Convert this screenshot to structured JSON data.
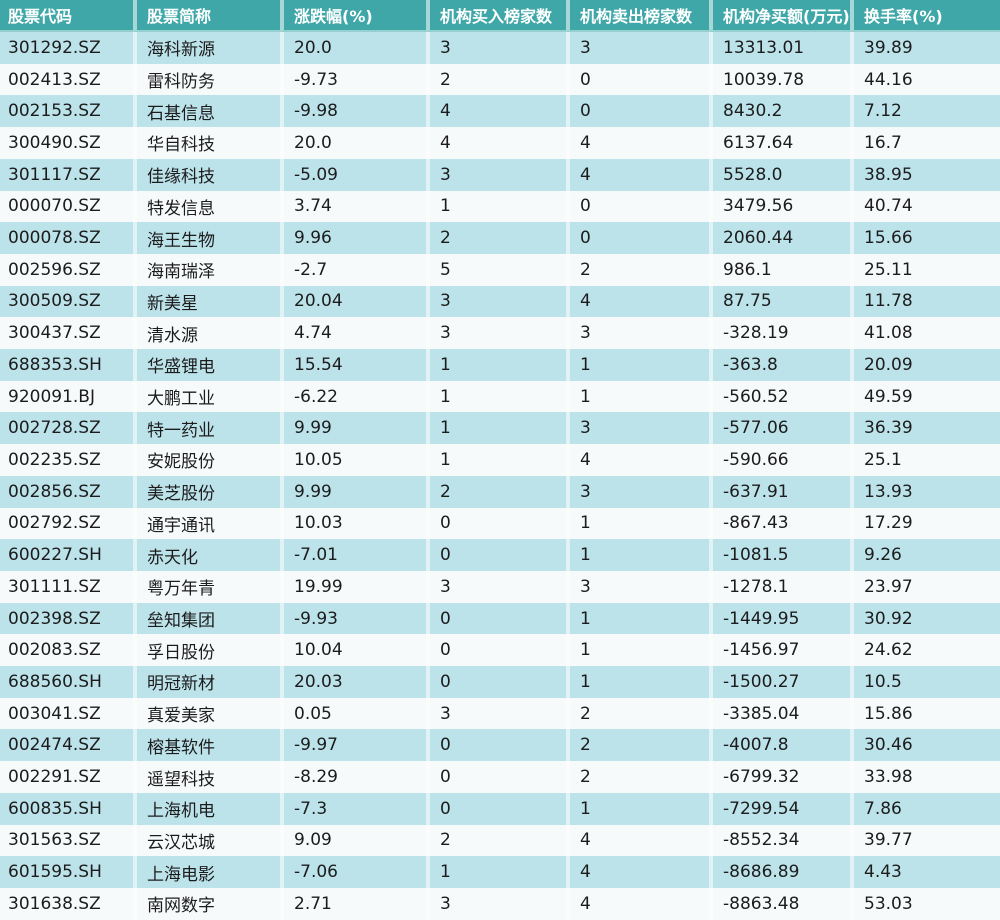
{
  "colors": {
    "header_bg": "#3fa7a8",
    "header_text": "#ffffff",
    "row_alt_bg": "#bce2ea",
    "row_bg": "#f7fafb",
    "cell_text": "#1c1c1c",
    "separator": "rgba(255,255,255,0.55)"
  },
  "table": {
    "columns": [
      {
        "key": "code",
        "label": "股票代码"
      },
      {
        "key": "name",
        "label": "股票简称"
      },
      {
        "key": "change",
        "label": "涨跌幅(%)"
      },
      {
        "key": "buy",
        "label": "机构买入榜家数"
      },
      {
        "key": "sell",
        "label": "机构卖出榜家数"
      },
      {
        "key": "net",
        "label": "机构净买额(万元)"
      },
      {
        "key": "turnover",
        "label": "换手率(%)"
      }
    ],
    "rows": [
      [
        "301292.SZ",
        "海科新源",
        "20.0",
        "3",
        "3",
        "13313.01",
        "39.89"
      ],
      [
        "002413.SZ",
        "雷科防务",
        "-9.73",
        "2",
        "0",
        "10039.78",
        "44.16"
      ],
      [
        "002153.SZ",
        "石基信息",
        "-9.98",
        "4",
        "0",
        "8430.2",
        "7.12"
      ],
      [
        "300490.SZ",
        "华自科技",
        "20.0",
        "4",
        "4",
        "6137.64",
        "16.7"
      ],
      [
        "301117.SZ",
        "佳缘科技",
        "-5.09",
        "3",
        "4",
        "5528.0",
        "38.95"
      ],
      [
        "000070.SZ",
        "特发信息",
        "3.74",
        "1",
        "0",
        "3479.56",
        "40.74"
      ],
      [
        "000078.SZ",
        "海王生物",
        "9.96",
        "2",
        "0",
        "2060.44",
        "15.66"
      ],
      [
        "002596.SZ",
        "海南瑞泽",
        "-2.7",
        "5",
        "2",
        "986.1",
        "25.11"
      ],
      [
        "300509.SZ",
        "新美星",
        "20.04",
        "3",
        "4",
        "87.75",
        "11.78"
      ],
      [
        "300437.SZ",
        "清水源",
        "4.74",
        "3",
        "3",
        "-328.19",
        "41.08"
      ],
      [
        "688353.SH",
        "华盛锂电",
        "15.54",
        "1",
        "1",
        "-363.8",
        "20.09"
      ],
      [
        "920091.BJ",
        "大鹏工业",
        "-6.22",
        "1",
        "1",
        "-560.52",
        "49.59"
      ],
      [
        "002728.SZ",
        "特一药业",
        "9.99",
        "1",
        "3",
        "-577.06",
        "36.39"
      ],
      [
        "002235.SZ",
        "安妮股份",
        "10.05",
        "1",
        "4",
        "-590.66",
        "25.1"
      ],
      [
        "002856.SZ",
        "美芝股份",
        "9.99",
        "2",
        "3",
        "-637.91",
        "13.93"
      ],
      [
        "002792.SZ",
        "通宇通讯",
        "10.03",
        "0",
        "1",
        "-867.43",
        "17.29"
      ],
      [
        "600227.SH",
        "赤天化",
        "-7.01",
        "0",
        "1",
        "-1081.5",
        "9.26"
      ],
      [
        "301111.SZ",
        "粤万年青",
        "19.99",
        "3",
        "3",
        "-1278.1",
        "23.97"
      ],
      [
        "002398.SZ",
        "垒知集团",
        "-9.93",
        "0",
        "1",
        "-1449.95",
        "30.92"
      ],
      [
        "002083.SZ",
        "孚日股份",
        "10.04",
        "0",
        "1",
        "-1456.97",
        "24.62"
      ],
      [
        "688560.SH",
        "明冠新材",
        "20.03",
        "0",
        "1",
        "-1500.27",
        "10.5"
      ],
      [
        "003041.SZ",
        "真爱美家",
        "0.05",
        "3",
        "2",
        "-3385.04",
        "15.86"
      ],
      [
        "002474.SZ",
        "榕基软件",
        "-9.97",
        "0",
        "2",
        "-4007.8",
        "30.46"
      ],
      [
        "002291.SZ",
        "遥望科技",
        "-8.29",
        "0",
        "2",
        "-6799.32",
        "33.98"
      ],
      [
        "600835.SH",
        "上海机电",
        "-7.3",
        "0",
        "1",
        "-7299.54",
        "7.86"
      ],
      [
        "301563.SZ",
        "云汉芯城",
        "9.09",
        "2",
        "4",
        "-8552.34",
        "39.77"
      ],
      [
        "601595.SH",
        "上海电影",
        "-7.06",
        "1",
        "4",
        "-8686.89",
        "4.43"
      ],
      [
        "301638.SZ",
        "南网数字",
        "2.71",
        "3",
        "4",
        "-8863.48",
        "53.03"
      ]
    ]
  }
}
